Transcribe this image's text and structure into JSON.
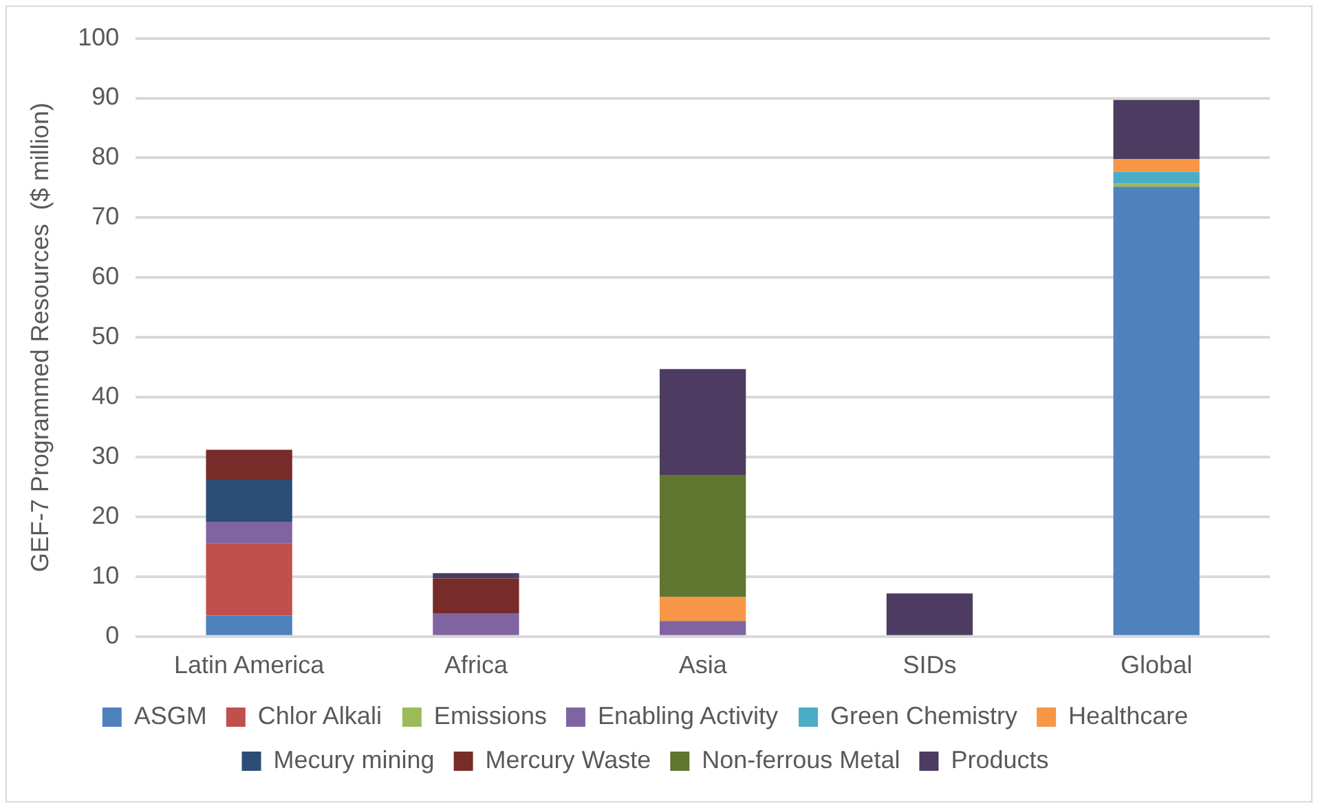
{
  "chart_data": {
    "type": "bar",
    "stacked": true,
    "ylabel": "GEF-7 Programmed Resources  ($ million)",
    "categories": [
      "Latin America",
      "Africa",
      "Asia",
      "SIDs",
      "Global"
    ],
    "ylim": [
      0,
      100
    ],
    "yticks": [
      0,
      10,
      20,
      30,
      40,
      50,
      60,
      70,
      80,
      90,
      100
    ],
    "grid": "y",
    "legend": "bottom",
    "series": [
      {
        "name": "ASGM",
        "color": "#4f81bd",
        "values": [
          3.5,
          null,
          null,
          null,
          75.2
        ]
      },
      {
        "name": "Chlor Alkali",
        "color": "#c0504d",
        "values": [
          12.1,
          null,
          null,
          null,
          null
        ]
      },
      {
        "name": "Emissions",
        "color": "#9bbb59",
        "values": [
          null,
          null,
          null,
          null,
          0.5
        ]
      },
      {
        "name": "Enabling Activity",
        "color": "#8064a2",
        "values": [
          3.6,
          3.9,
          2.6,
          null,
          null
        ]
      },
      {
        "name": "Green Chemistry",
        "color": "#4bacc6",
        "values": [
          null,
          null,
          null,
          null,
          2.0
        ]
      },
      {
        "name": "Healthcare",
        "color": "#f79646",
        "values": [
          null,
          null,
          4.0,
          null,
          2.1
        ]
      },
      {
        "name": "Mecury mining",
        "color": "#2c4d75",
        "values": [
          7.0,
          null,
          null,
          null,
          null
        ]
      },
      {
        "name": "Mercury Waste",
        "color": "#772c2a",
        "values": [
          5.0,
          5.8,
          null,
          null,
          null
        ]
      },
      {
        "name": "Non-ferrous Metal",
        "color": "#5f7530",
        "values": [
          null,
          null,
          20.4,
          null,
          null
        ]
      },
      {
        "name": "Products",
        "color": "#4d3b62",
        "values": [
          null,
          0.9,
          17.7,
          7.2,
          9.9
        ]
      }
    ]
  }
}
